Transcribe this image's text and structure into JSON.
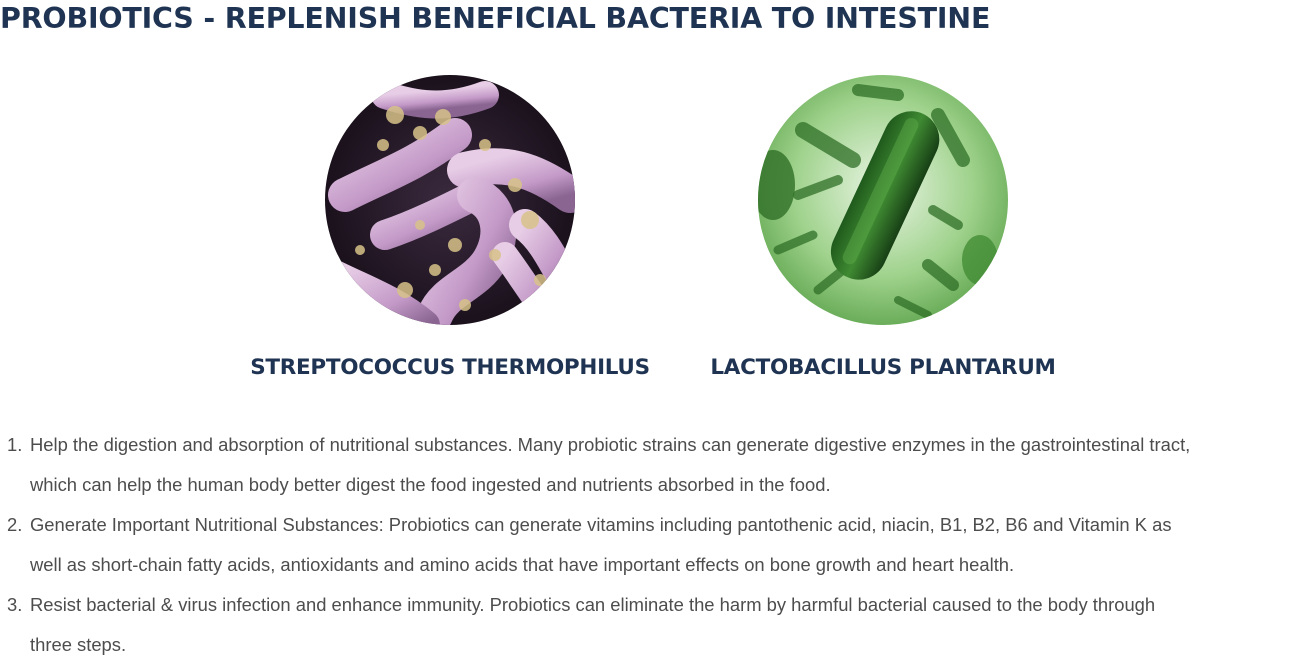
{
  "page": {
    "title": "PROBIOTICS - REPLENISH BENEFICIAL BACTERIA TO INTESTINE"
  },
  "strains": [
    {
      "label": "STREPTOCOCCUS THERMOPHILUS",
      "image_icon": "pink-bacteria-micrograph-image"
    },
    {
      "label": "LACTOBACILLUS PLANTARUM",
      "image_icon": "green-bacteria-illustration-image"
    }
  ],
  "benefits": [
    {
      "number": "1.",
      "lines": [
        "Help the digestion and absorption of nutritional substances. Many probiotic strains can generate digestive enzymes in the gastrointestinal tract,",
        "which can help the human body better digest the food ingested and nutrients absorbed in the food."
      ]
    },
    {
      "number": "2.",
      "lines": [
        "Generate Important Nutritional Substances: Probiotics can generate vitamins including pantothenic acid, niacin, B1, B2, B6 and Vitamin K as",
        "well as short-chain fatty acids, antioxidants and amino acids that have important effects on bone growth and heart health."
      ]
    },
    {
      "number": "3.",
      "lines": [
        "Resist bacterial & virus infection and enhance immunity. Probiotics can eliminate the harm by harmful bacterial caused to the body through",
        "three steps."
      ]
    }
  ],
  "colors": {
    "heading": "#1f3352",
    "body_text": "#4d4d4d"
  }
}
